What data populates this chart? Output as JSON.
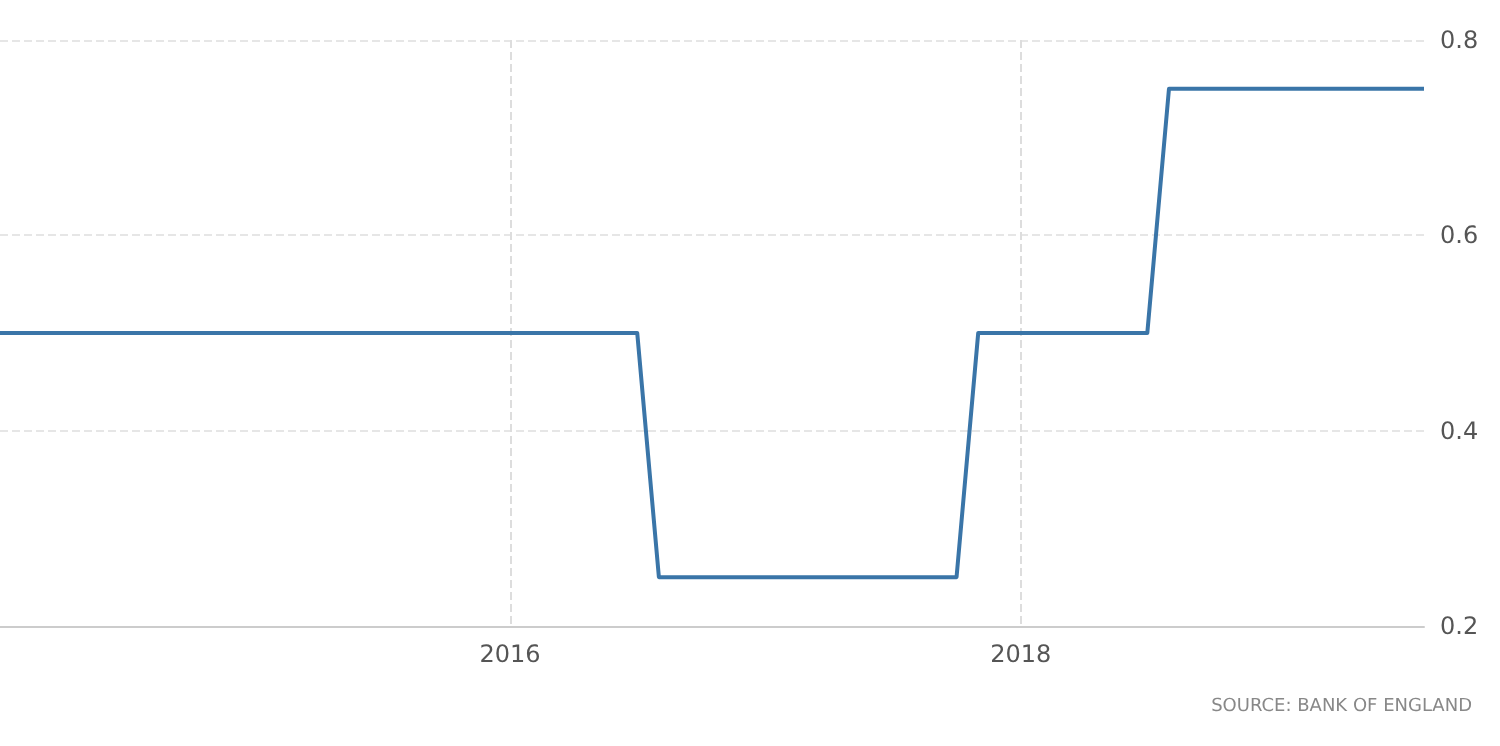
{
  "chart_data": {
    "type": "line",
    "x": [
      "2014-01",
      "2016-07",
      "2016-08",
      "2017-10",
      "2017-11",
      "2018-07",
      "2018-08",
      "2019-08"
    ],
    "series": [
      {
        "color": "#3a75a8",
        "values": [
          0.5,
          0.5,
          0.25,
          0.25,
          0.5,
          0.5,
          0.75,
          0.75
        ]
      }
    ],
    "xlim": [
      "2014-01",
      "2019-08"
    ],
    "xticks": [
      "2016",
      "2018"
    ],
    "ylim": [
      0.2,
      0.8
    ],
    "yticks": [
      0.2,
      0.4,
      0.6,
      0.8
    ],
    "grid": true,
    "marker": "none",
    "line_style": "solid",
    "annotations": [
      "SOURCE: BANK OF ENGLAND"
    ]
  }
}
